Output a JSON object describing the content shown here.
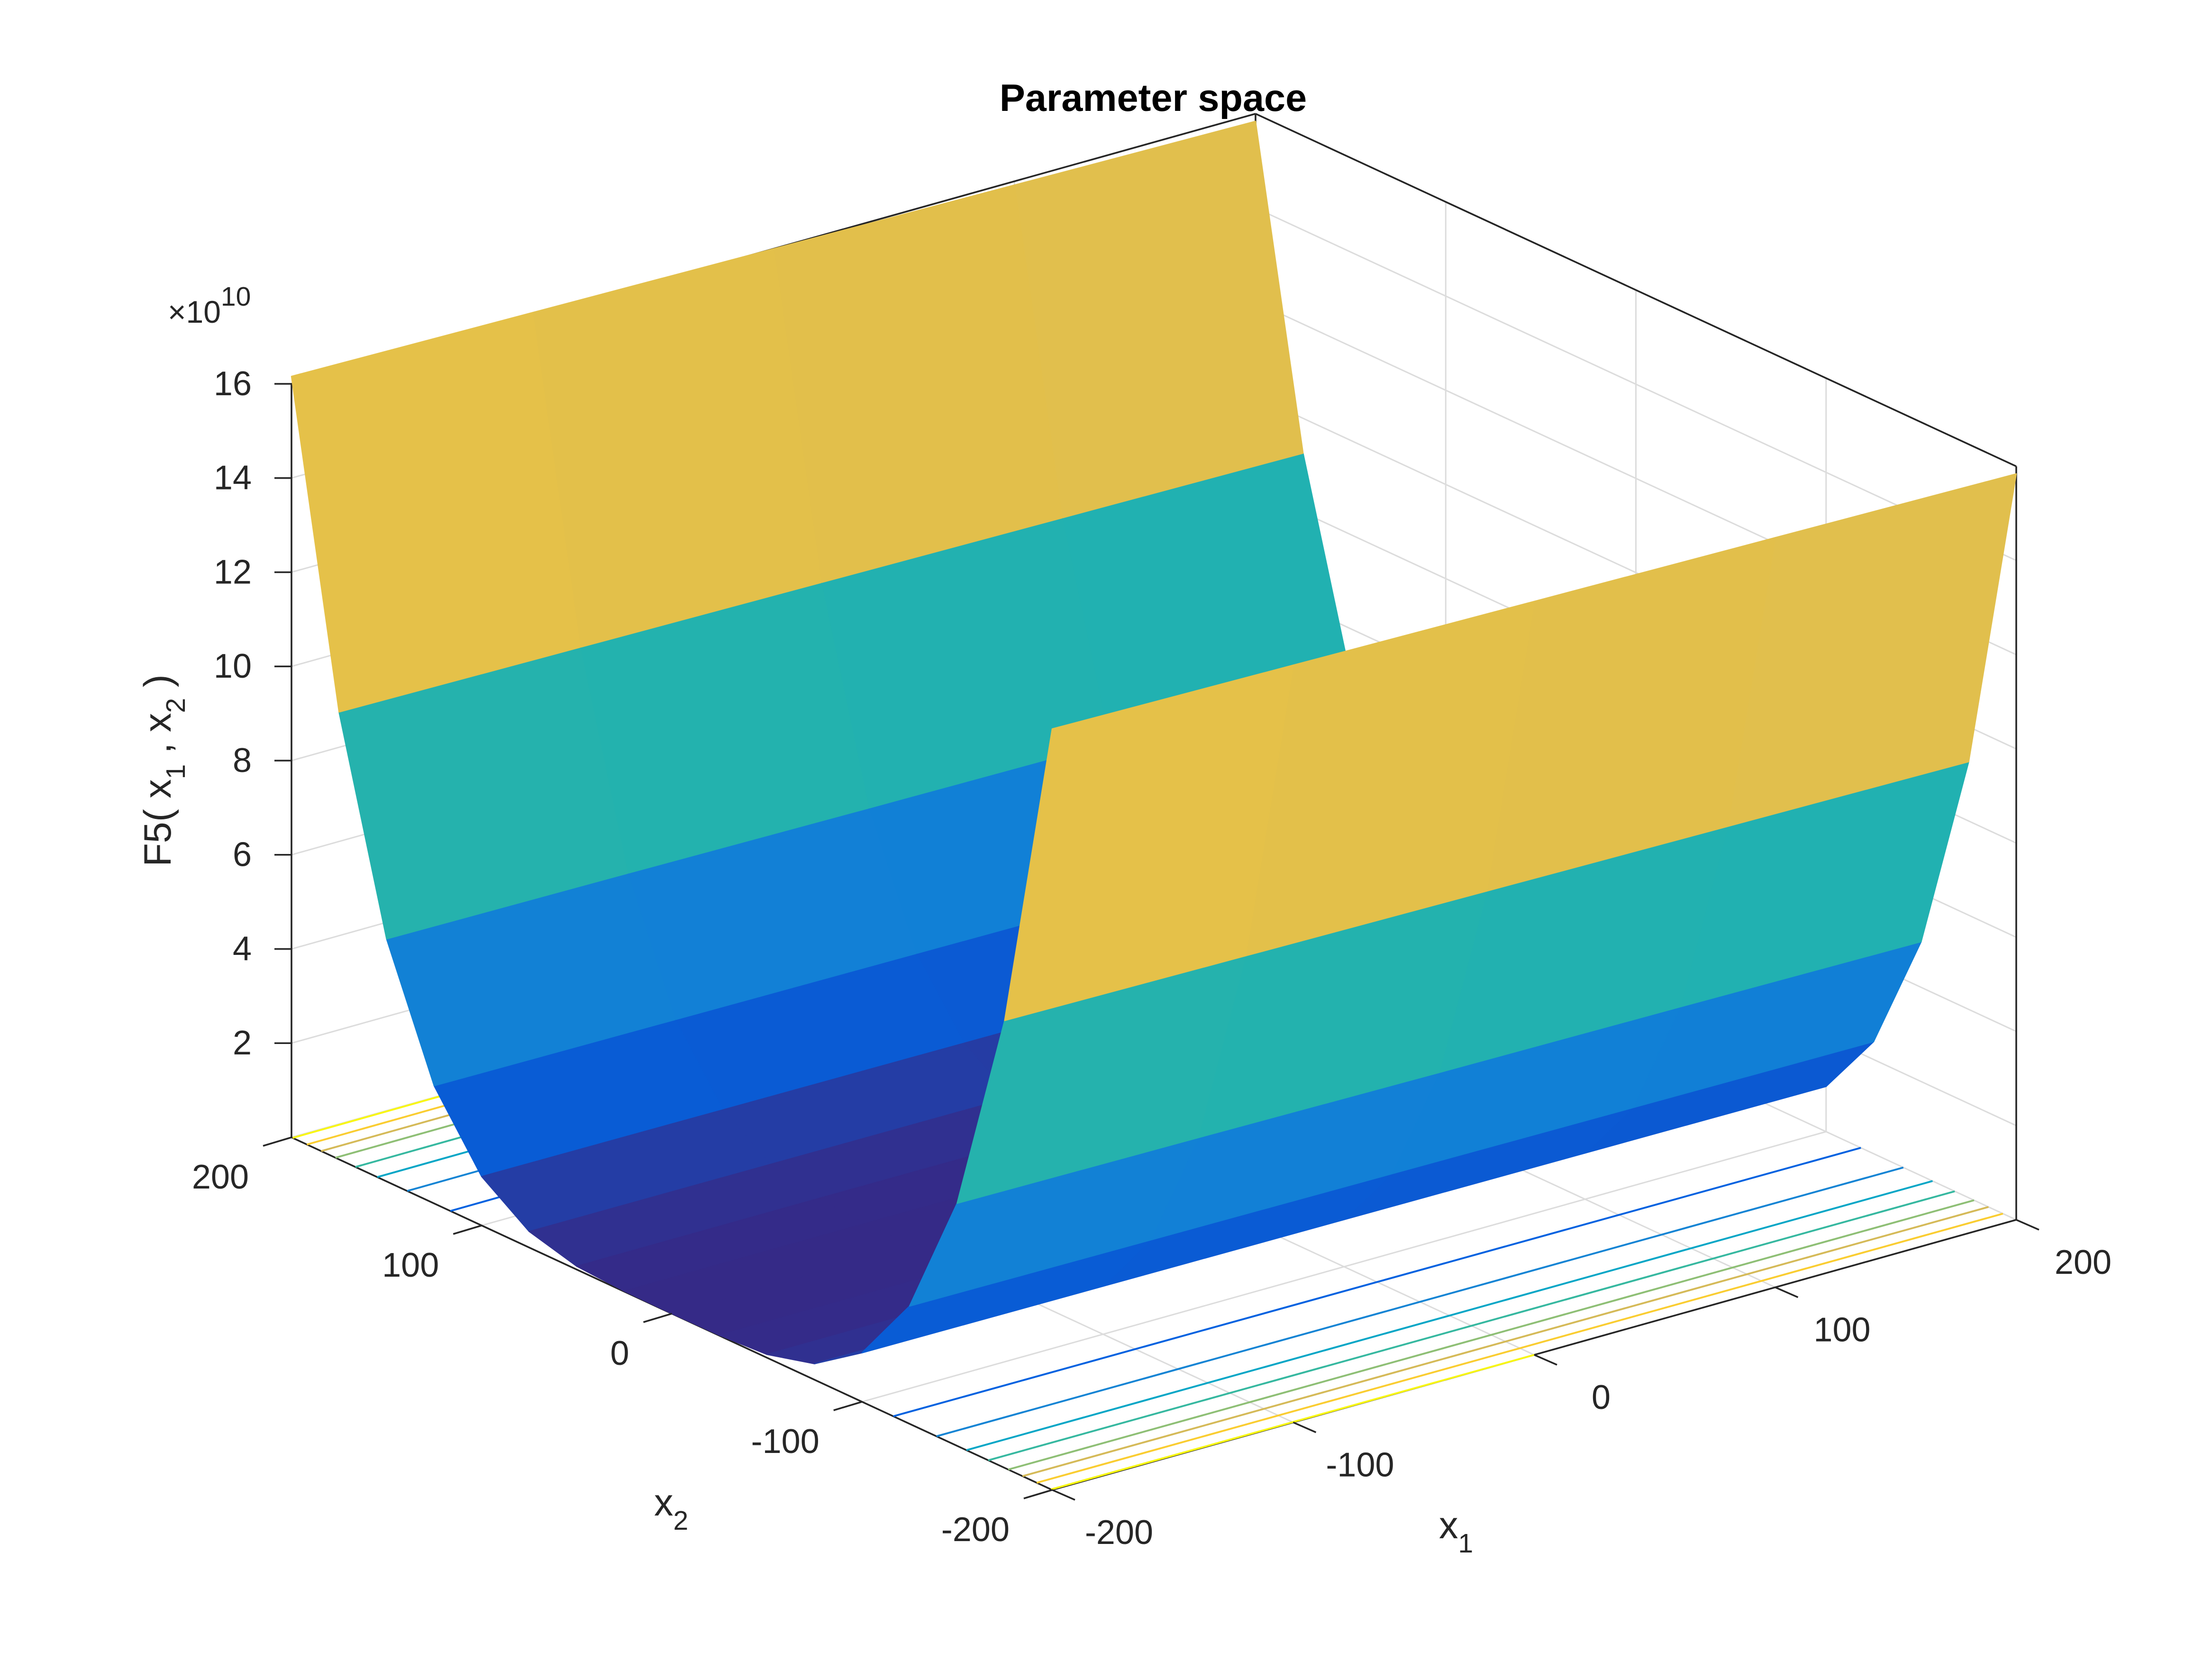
{
  "chart_data": {
    "type": "surface",
    "title": "Parameter space",
    "xlabel": [
      "x",
      "1"
    ],
    "ylabel": [
      "x",
      "2"
    ],
    "zlabel": [
      "F5( x",
      "1",
      " , x",
      "2",
      " )"
    ],
    "z_multiplier": [
      "×10",
      "10"
    ],
    "x1": [
      -200,
      -100,
      0,
      100,
      200
    ],
    "x2": [
      -200,
      -175,
      -150,
      -125,
      -100,
      -75,
      -50,
      -25,
      0,
      25,
      50,
      75,
      100,
      125,
      150,
      175,
      200
    ],
    "z": [
      [
        16.16,
        16.08,
        16.0,
        15.92,
        15.84
      ],
      [
        9.5,
        9.44,
        9.38,
        9.32,
        9.26
      ],
      [
        5.15,
        5.11,
        5.06,
        5.02,
        4.97
      ],
      [
        2.5,
        2.47,
        2.44,
        2.41,
        2.38
      ],
      [
        1.04,
        1.02,
        1.0,
        0.98,
        0.96
      ],
      [
        0.34,
        0.33,
        0.32,
        0.31,
        0.29
      ],
      [
        0.07,
        0.07,
        0.06,
        0.06,
        0.05
      ],
      [
        0.01,
        0.01,
        0.0,
        0.0,
        0.0
      ],
      [
        0,
        0,
        0,
        0,
        0
      ],
      [
        0.01,
        0.01,
        0.0,
        0.0,
        0.0
      ],
      [
        0.07,
        0.07,
        0.06,
        0.06,
        0.05
      ],
      [
        0.34,
        0.33,
        0.32,
        0.31,
        0.29
      ],
      [
        1.04,
        1.02,
        1.0,
        0.98,
        0.96
      ],
      [
        2.5,
        2.47,
        2.44,
        2.41,
        2.38
      ],
      [
        5.15,
        5.11,
        5.06,
        5.02,
        4.97
      ],
      [
        9.5,
        9.44,
        9.38,
        9.32,
        9.26
      ],
      [
        16.16,
        16.08,
        16.0,
        15.92,
        15.84
      ]
    ],
    "contour_levels": [
      2,
      4,
      6,
      8,
      10,
      12,
      14,
      16
    ],
    "colormap": [
      "#352a87",
      "#0363e1",
      "#1485d4",
      "#06a7c6",
      "#38b99e",
      "#92bf73",
      "#d9ba56",
      "#fcce2e",
      "#f9fb0e"
    ],
    "xlim": [
      -200,
      200
    ],
    "ylim": [
      -200,
      200
    ],
    "zlim": [
      0,
      16
    ],
    "xticks": [
      -200,
      -100,
      0,
      100,
      200
    ],
    "yticks": [
      -200,
      -100,
      0,
      100,
      200
    ],
    "zticks": [
      2,
      4,
      6,
      8,
      10,
      12,
      14,
      16
    ],
    "grid": true
  }
}
